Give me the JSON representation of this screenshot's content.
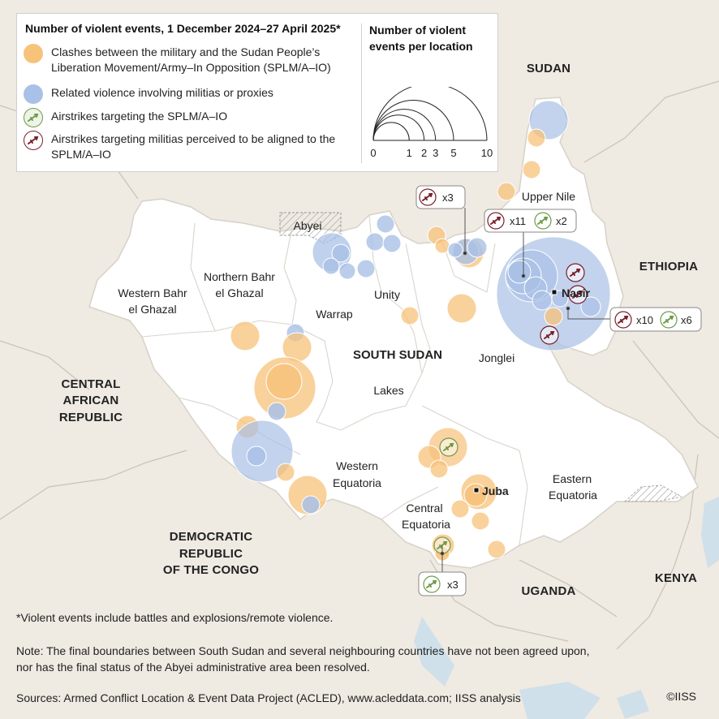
{
  "legend": {
    "title": "Number of violent events, 1 December 2024–27 April 2025*",
    "items": [
      {
        "label": "Clashes between the military and the Sudan People’s Liberation Movement/Army–In Opposition (SPLM/A–IO)",
        "color": "#f7c27a",
        "icon": "orange-circle-icon"
      },
      {
        "label": "Related violence involving militias or proxies",
        "color": "#a9c1e6",
        "icon": "blue-circle-icon"
      },
      {
        "label": "Airstrikes targeting the SPLM/A–IO",
        "color": "#6f9a4a",
        "icon": "green-airplane-icon"
      },
      {
        "label": "Airstrikes targeting militias perceived to be aligned to the SPLM/A–IO",
        "color": "#7a1f2b",
        "icon": "maroon-airplane-icon"
      }
    ],
    "size_title": "Number of violent events per location",
    "size_scale": [
      0,
      1,
      2,
      3,
      5,
      10
    ],
    "size_scale_labels": [
      "0",
      "1",
      "2",
      "3",
      "5",
      "10"
    ]
  },
  "countries": {
    "sudan": "SUDAN",
    "ethiopia": "ETHIOPIA",
    "car": [
      "CENTRAL",
      "AFRICAN",
      "REPUBLIC"
    ],
    "drc": [
      "DEMOCRATIC",
      "REPUBLIC",
      "OF THE CONGO"
    ],
    "uganda": "UGANDA",
    "kenya": "KENYA",
    "south_sudan": "SOUTH SUDAN"
  },
  "regions": {
    "upper_nile": "Upper Nile",
    "abyei": "Abyei",
    "northern_bahr": [
      "Northern Bahr",
      "el Ghazal"
    ],
    "western_bahr": [
      "Western Bahr",
      "el Ghazal"
    ],
    "unity": "Unity",
    "warrap": "Warrap",
    "jonglei": "Jonglei",
    "lakes": "Lakes",
    "western_equatoria": [
      "Western",
      "Equatoria"
    ],
    "central_equatoria": [
      "Central",
      "Equatoria"
    ],
    "eastern_equatoria": [
      "Eastern",
      "Equatoria"
    ]
  },
  "cities": {
    "nasir": "Nasir",
    "juba": "Juba"
  },
  "callouts": {
    "maroon_x3": "x3",
    "maroon_x11": "x11",
    "green_x2": "x2",
    "maroon_x10": "x10",
    "green_x6": "x6",
    "green_x3": "x3"
  },
  "footnote": "*Violent events include battles and explosions/remote violence.",
  "note_line1": "Note: The final boundaries between South Sudan and several neighbouring countries have not been agreed upon,",
  "note_line2": "nor has the final status of the Abyei administrative area been resolved.",
  "sources": "Sources: Armed Conflict Location & Event Data Project (ACLED), www.acleddata.com; IISS analysis",
  "copyright": "©IISS",
  "colors": {
    "land_outside": "#efeae2",
    "south_sudan": "#ffffff",
    "water": "#cfe0ea",
    "orange": "#f7c27a",
    "blue": "#a9c1e6",
    "maroon": "#7a1f2b",
    "green": "#6f9a4a"
  }
}
